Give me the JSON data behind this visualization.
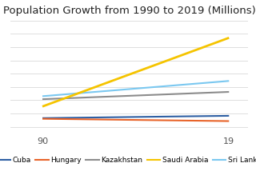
{
  "title": "Population Growth from 1990 to 2019 (Millions)",
  "x_labels": [
    "90",
    "19"
  ],
  "x_positions": [
    1990,
    2019
  ],
  "series": [
    {
      "name": "Cuba",
      "values": [
        10.6,
        11.3
      ],
      "color": "#2E5FA3",
      "linewidth": 1.5,
      "zorder": 3
    },
    {
      "name": "Hungary",
      "values": [
        10.4,
        9.7
      ],
      "color": "#E8642A",
      "linewidth": 1.5,
      "zorder": 3
    },
    {
      "name": "Kazakhstan",
      "values": [
        16.3,
        18.5
      ],
      "color": "#8C8C8C",
      "linewidth": 1.5,
      "zorder": 3
    },
    {
      "name": "Saudi Arabia",
      "values": [
        14.1,
        34.8
      ],
      "color": "#F5C400",
      "linewidth": 2.0,
      "zorder": 4
    },
    {
      "name": "Sri Lanka",
      "values": [
        17.2,
        21.8
      ],
      "color": "#7BC8F0",
      "linewidth": 1.5,
      "zorder": 3
    }
  ],
  "ylim": [
    6,
    40
  ],
  "xlim": [
    1985,
    2022
  ],
  "title_fontsize": 9.5,
  "tick_fontsize": 8,
  "legend_fontsize": 6.5,
  "background_color": "#ffffff",
  "grid_color": "#d9d9d9",
  "grid_y_values": [
    8,
    12,
    16,
    20,
    24,
    28,
    32,
    36,
    40
  ]
}
